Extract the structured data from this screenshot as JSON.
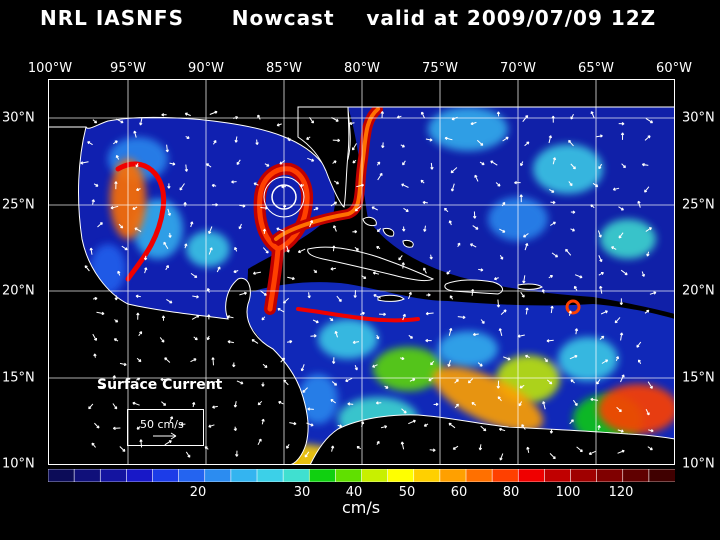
{
  "title": "NRL IASNFS      Nowcast    valid at 2009/07/09 12Z",
  "lon_labels": [
    "100°W",
    "95°W",
    "90°W",
    "85°W",
    "80°W",
    "75°W",
    "70°W",
    "65°W",
    "60°W"
  ],
  "lat_labels": [
    "30°N",
    "25°N",
    "20°N",
    "15°N",
    "10°N"
  ],
  "surface_current_label": "Surface Current",
  "reference_vector_label": "50 cm/s",
  "colorbar": {
    "units": "cm/s",
    "tick_labels": [
      "20",
      "30",
      "40",
      "50",
      "60",
      "80",
      "100",
      "120"
    ],
    "colors": [
      "#0c0c58",
      "#10107a",
      "#1414a0",
      "#1818c8",
      "#1c3ce8",
      "#2464f0",
      "#2c8cf0",
      "#34b4f0",
      "#3cd0e8",
      "#40e0d0",
      "#10d010",
      "#60e000",
      "#c8f000",
      "#ffff00",
      "#ffd000",
      "#ffa000",
      "#ff7000",
      "#ff4000",
      "#f00000",
      "#c00000",
      "#a00000",
      "#800000",
      "#600000",
      "#400000"
    ]
  }
}
